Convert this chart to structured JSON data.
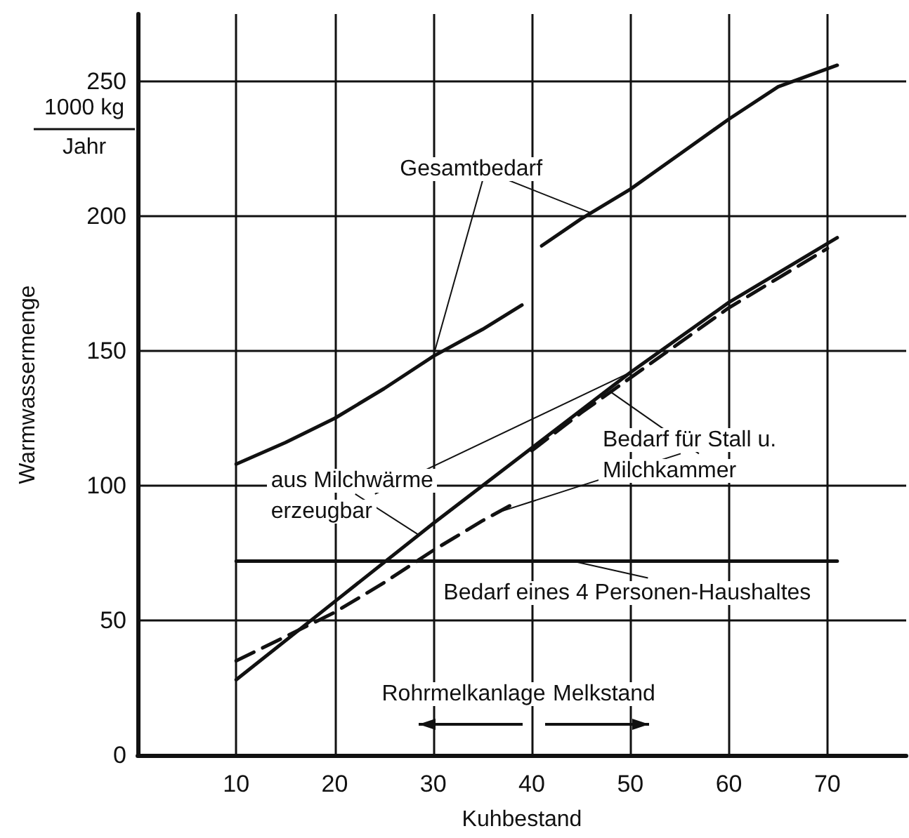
{
  "chart_data": {
    "type": "line",
    "xlabel": "Kuhbestand",
    "ylabel": "Warmwassermenge",
    "annotations": [
      "1000 kg",
      "Jahr",
      "Rohrmelkanlage",
      "Melkstand"
    ],
    "xlim": [
      0,
      78
    ],
    "xticks": [
      10,
      20,
      30,
      40,
      50,
      60,
      70
    ],
    "ylim": [
      0,
      275
    ],
    "yticks": [
      0,
      50,
      100,
      150,
      200,
      250
    ],
    "grid": true,
    "marker": "none",
    "series": [
      {
        "name": "Gesamtbedarf",
        "color": "#111111",
        "line_style": "solid",
        "x": [
          10,
          15,
          20,
          25,
          30,
          35,
          39,
          40,
          41,
          45,
          50,
          55,
          60,
          65,
          71
        ],
        "values": [
          108,
          116,
          125,
          136,
          148,
          158,
          167,
          null,
          189,
          199,
          210,
          223,
          236,
          248,
          256
        ]
      },
      {
        "name": "aus Milchwärme erzeugbar",
        "color": "#111111",
        "line_style": "solid",
        "x": [
          10,
          20,
          30,
          40,
          50,
          60,
          71
        ],
        "values": [
          28,
          57,
          86,
          114,
          142,
          168,
          192
        ]
      },
      {
        "name": "Bedarf für Stall u. Milchkammer",
        "color": "#111111",
        "line_style": "dashed",
        "x": [
          10,
          15,
          20,
          25,
          30,
          35,
          38,
          39,
          40,
          45,
          50,
          55,
          60,
          65,
          70
        ],
        "values": [
          35,
          44,
          53,
          64,
          76,
          87,
          93,
          null,
          113,
          127,
          140,
          153,
          166,
          177,
          188
        ]
      },
      {
        "name": "Bedarf eines 4 Personen-Haushaltes",
        "color": "#111111",
        "line_style": "solid",
        "x": [
          10,
          71
        ],
        "values": [
          72,
          72
        ]
      }
    ]
  }
}
